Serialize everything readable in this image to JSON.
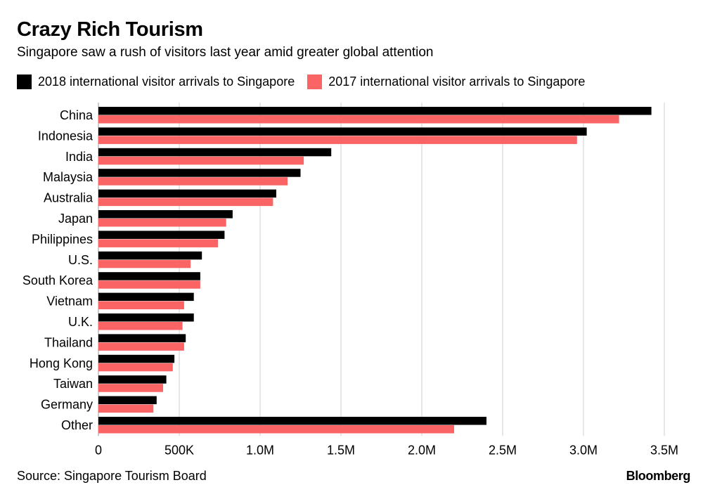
{
  "header": {
    "title": "Crazy Rich Tourism",
    "subtitle": "Singapore saw a rush of visitors last year amid greater global attention"
  },
  "legend": {
    "items": [
      {
        "label": "2018 international visitor arrivals to Singapore",
        "color": "#000000"
      },
      {
        "label": "2017 international visitor arrivals to Singapore",
        "color": "#fa6464"
      }
    ]
  },
  "footer": {
    "source": "Source: Singapore Tourism Board",
    "brand": "Bloomberg"
  },
  "chart_data": {
    "type": "bar",
    "orientation": "horizontal",
    "categories": [
      "China",
      "Indonesia",
      "India",
      "Malaysia",
      "Australia",
      "Japan",
      "Philippines",
      "U.S.",
      "South Korea",
      "Vietnam",
      "U.K.",
      "Thailand",
      "Hong Kong",
      "Taiwan",
      "Germany",
      "Other"
    ],
    "series": [
      {
        "name": "2018 international visitor arrivals to Singapore",
        "color": "#000000",
        "values": [
          3420000,
          3020000,
          1440000,
          1250000,
          1100000,
          830000,
          780000,
          640000,
          630000,
          590000,
          590000,
          540000,
          470000,
          420000,
          360000,
          2400000
        ]
      },
      {
        "name": "2017 international visitor arrivals to Singapore",
        "color": "#fa6464",
        "values": [
          3220000,
          2960000,
          1270000,
          1170000,
          1080000,
          790000,
          740000,
          570000,
          630000,
          530000,
          520000,
          530000,
          460000,
          400000,
          340000,
          2200000
        ]
      }
    ],
    "xlim": [
      0,
      3500000
    ],
    "xticks": [
      0,
      500000,
      1000000,
      1500000,
      2000000,
      2500000,
      3000000,
      3500000
    ],
    "xtick_labels": [
      "0",
      "500K",
      "1.0M",
      "1.5M",
      "2.0M",
      "2.5M",
      "3.0M",
      "3.5M"
    ],
    "grid": true,
    "legend_position": "top-left"
  }
}
